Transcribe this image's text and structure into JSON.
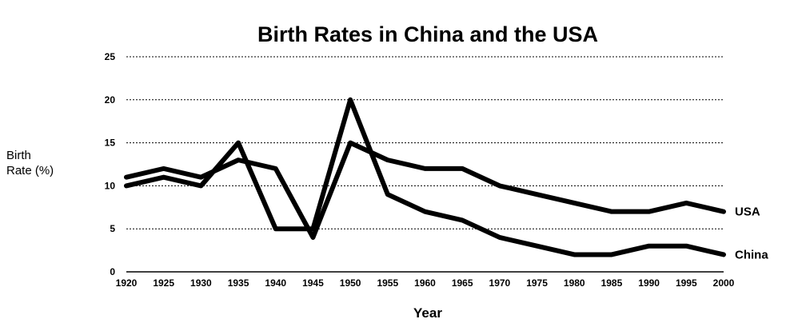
{
  "chart_data": {
    "type": "line",
    "title": "Birth Rates in China and the USA",
    "xlabel": "Year",
    "ylabel_line1": "Birth",
    "ylabel_line2": "Rate (%)",
    "ylim": [
      0,
      25
    ],
    "yticks": [
      0,
      5,
      10,
      15,
      20,
      25
    ],
    "x": [
      1920,
      1925,
      1930,
      1935,
      1940,
      1945,
      1950,
      1955,
      1960,
      1965,
      1970,
      1975,
      1980,
      1985,
      1990,
      1995,
      2000
    ],
    "grid": true,
    "series": [
      {
        "name": "USA",
        "color": "#000000",
        "values": [
          11,
          12,
          11,
          13,
          12,
          4,
          15,
          13,
          12,
          12,
          10,
          9,
          8,
          7,
          7,
          8,
          7
        ]
      },
      {
        "name": "China",
        "color": "#000000",
        "values": [
          10,
          11,
          10,
          15,
          5,
          5,
          20,
          9,
          7,
          6,
          4,
          3,
          2,
          2,
          3,
          3,
          2
        ]
      }
    ]
  }
}
